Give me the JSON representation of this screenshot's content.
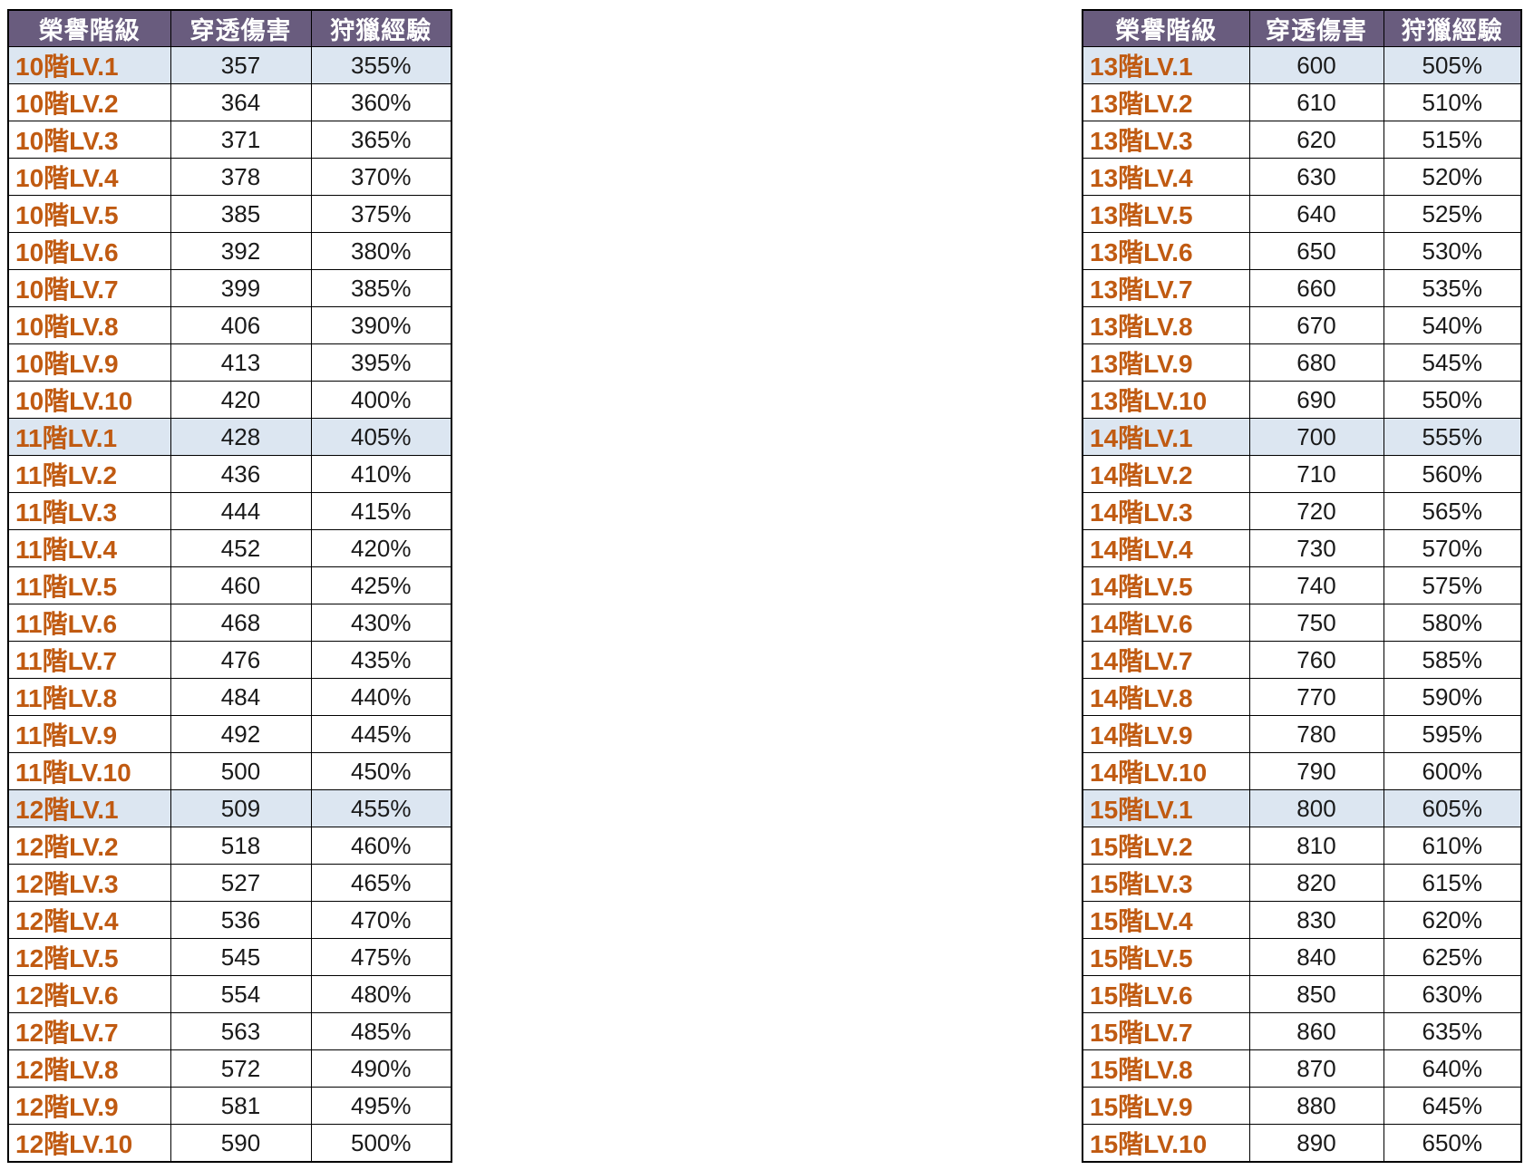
{
  "colors": {
    "header_bg": "#695C7E",
    "header_text": "#FFFFFF",
    "rank_text": "#C05A11",
    "highlight_row_bg": "#DCE6F1",
    "value_text": "#1A1A1A",
    "border": "#000000",
    "page_bg": "#FFFFFF"
  },
  "tables": [
    {
      "id": "honor-table-left",
      "headers": [
        "榮譽階級",
        "穿透傷害",
        "狩獵經驗"
      ],
      "rows": [
        {
          "rank": "10階LV.1",
          "damage": "357",
          "exp": "355%",
          "highlight": true
        },
        {
          "rank": "10階LV.2",
          "damage": "364",
          "exp": "360%",
          "highlight": false
        },
        {
          "rank": "10階LV.3",
          "damage": "371",
          "exp": "365%",
          "highlight": false
        },
        {
          "rank": "10階LV.4",
          "damage": "378",
          "exp": "370%",
          "highlight": false
        },
        {
          "rank": "10階LV.5",
          "damage": "385",
          "exp": "375%",
          "highlight": false
        },
        {
          "rank": "10階LV.6",
          "damage": "392",
          "exp": "380%",
          "highlight": false
        },
        {
          "rank": "10階LV.7",
          "damage": "399",
          "exp": "385%",
          "highlight": false
        },
        {
          "rank": "10階LV.8",
          "damage": "406",
          "exp": "390%",
          "highlight": false
        },
        {
          "rank": "10階LV.9",
          "damage": "413",
          "exp": "395%",
          "highlight": false
        },
        {
          "rank": "10階LV.10",
          "damage": "420",
          "exp": "400%",
          "highlight": false
        },
        {
          "rank": "11階LV.1",
          "damage": "428",
          "exp": "405%",
          "highlight": true
        },
        {
          "rank": "11階LV.2",
          "damage": "436",
          "exp": "410%",
          "highlight": false
        },
        {
          "rank": "11階LV.3",
          "damage": "444",
          "exp": "415%",
          "highlight": false
        },
        {
          "rank": "11階LV.4",
          "damage": "452",
          "exp": "420%",
          "highlight": false
        },
        {
          "rank": "11階LV.5",
          "damage": "460",
          "exp": "425%",
          "highlight": false
        },
        {
          "rank": "11階LV.6",
          "damage": "468",
          "exp": "430%",
          "highlight": false
        },
        {
          "rank": "11階LV.7",
          "damage": "476",
          "exp": "435%",
          "highlight": false
        },
        {
          "rank": "11階LV.8",
          "damage": "484",
          "exp": "440%",
          "highlight": false
        },
        {
          "rank": "11階LV.9",
          "damage": "492",
          "exp": "445%",
          "highlight": false
        },
        {
          "rank": "11階LV.10",
          "damage": "500",
          "exp": "450%",
          "highlight": false
        },
        {
          "rank": "12階LV.1",
          "damage": "509",
          "exp": "455%",
          "highlight": true
        },
        {
          "rank": "12階LV.2",
          "damage": "518",
          "exp": "460%",
          "highlight": false
        },
        {
          "rank": "12階LV.3",
          "damage": "527",
          "exp": "465%",
          "highlight": false
        },
        {
          "rank": "12階LV.4",
          "damage": "536",
          "exp": "470%",
          "highlight": false
        },
        {
          "rank": "12階LV.5",
          "damage": "545",
          "exp": "475%",
          "highlight": false
        },
        {
          "rank": "12階LV.6",
          "damage": "554",
          "exp": "480%",
          "highlight": false
        },
        {
          "rank": "12階LV.7",
          "damage": "563",
          "exp": "485%",
          "highlight": false
        },
        {
          "rank": "12階LV.8",
          "damage": "572",
          "exp": "490%",
          "highlight": false
        },
        {
          "rank": "12階LV.9",
          "damage": "581",
          "exp": "495%",
          "highlight": false
        },
        {
          "rank": "12階LV.10",
          "damage": "590",
          "exp": "500%",
          "highlight": false
        }
      ]
    },
    {
      "id": "honor-table-right",
      "headers": [
        "榮譽階級",
        "穿透傷害",
        "狩獵經驗"
      ],
      "rows": [
        {
          "rank": "13階LV.1",
          "damage": "600",
          "exp": "505%",
          "highlight": true
        },
        {
          "rank": "13階LV.2",
          "damage": "610",
          "exp": "510%",
          "highlight": false
        },
        {
          "rank": "13階LV.3",
          "damage": "620",
          "exp": "515%",
          "highlight": false
        },
        {
          "rank": "13階LV.4",
          "damage": "630",
          "exp": "520%",
          "highlight": false
        },
        {
          "rank": "13階LV.5",
          "damage": "640",
          "exp": "525%",
          "highlight": false
        },
        {
          "rank": "13階LV.6",
          "damage": "650",
          "exp": "530%",
          "highlight": false
        },
        {
          "rank": "13階LV.7",
          "damage": "660",
          "exp": "535%",
          "highlight": false
        },
        {
          "rank": "13階LV.8",
          "damage": "670",
          "exp": "540%",
          "highlight": false
        },
        {
          "rank": "13階LV.9",
          "damage": "680",
          "exp": "545%",
          "highlight": false
        },
        {
          "rank": "13階LV.10",
          "damage": "690",
          "exp": "550%",
          "highlight": false
        },
        {
          "rank": "14階LV.1",
          "damage": "700",
          "exp": "555%",
          "highlight": true
        },
        {
          "rank": "14階LV.2",
          "damage": "710",
          "exp": "560%",
          "highlight": false
        },
        {
          "rank": "14階LV.3",
          "damage": "720",
          "exp": "565%",
          "highlight": false
        },
        {
          "rank": "14階LV.4",
          "damage": "730",
          "exp": "570%",
          "highlight": false
        },
        {
          "rank": "14階LV.5",
          "damage": "740",
          "exp": "575%",
          "highlight": false
        },
        {
          "rank": "14階LV.6",
          "damage": "750",
          "exp": "580%",
          "highlight": false
        },
        {
          "rank": "14階LV.7",
          "damage": "760",
          "exp": "585%",
          "highlight": false
        },
        {
          "rank": "14階LV.8",
          "damage": "770",
          "exp": "590%",
          "highlight": false
        },
        {
          "rank": "14階LV.9",
          "damage": "780",
          "exp": "595%",
          "highlight": false
        },
        {
          "rank": "14階LV.10",
          "damage": "790",
          "exp": "600%",
          "highlight": false
        },
        {
          "rank": "15階LV.1",
          "damage": "800",
          "exp": "605%",
          "highlight": true
        },
        {
          "rank": "15階LV.2",
          "damage": "810",
          "exp": "610%",
          "highlight": false
        },
        {
          "rank": "15階LV.3",
          "damage": "820",
          "exp": "615%",
          "highlight": false
        },
        {
          "rank": "15階LV.4",
          "damage": "830",
          "exp": "620%",
          "highlight": false
        },
        {
          "rank": "15階LV.5",
          "damage": "840",
          "exp": "625%",
          "highlight": false
        },
        {
          "rank": "15階LV.6",
          "damage": "850",
          "exp": "630%",
          "highlight": false
        },
        {
          "rank": "15階LV.7",
          "damage": "860",
          "exp": "635%",
          "highlight": false
        },
        {
          "rank": "15階LV.8",
          "damage": "870",
          "exp": "640%",
          "highlight": false
        },
        {
          "rank": "15階LV.9",
          "damage": "880",
          "exp": "645%",
          "highlight": false
        },
        {
          "rank": "15階LV.10",
          "damage": "890",
          "exp": "650%",
          "highlight": false
        }
      ]
    }
  ]
}
